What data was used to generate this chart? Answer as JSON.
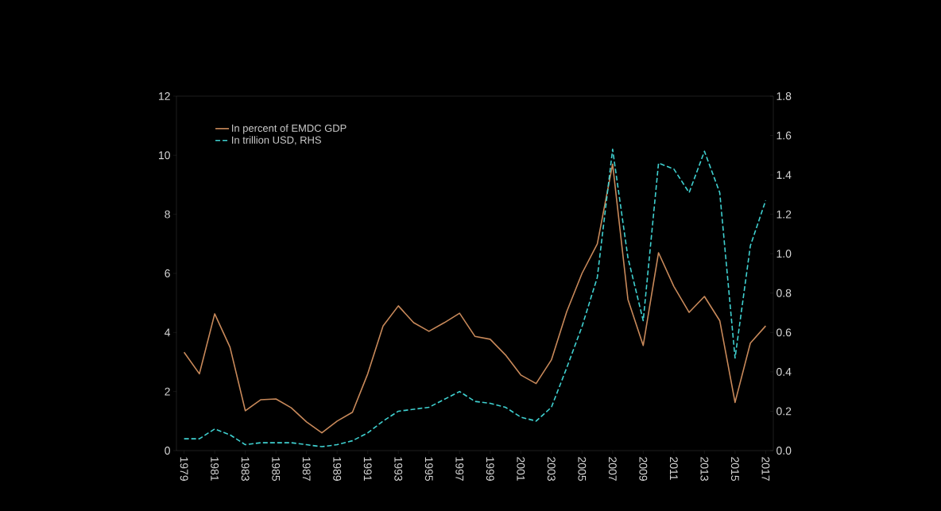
{
  "chart_data": {
    "type": "line",
    "x": [
      1979,
      1980,
      1981,
      1982,
      1983,
      1984,
      1985,
      1986,
      1987,
      1988,
      1989,
      1990,
      1991,
      1992,
      1993,
      1994,
      1995,
      1996,
      1997,
      1998,
      1999,
      2000,
      2001,
      2002,
      2003,
      2004,
      2005,
      2006,
      2007,
      2008,
      2009,
      2010,
      2011,
      2012,
      2013,
      2014,
      2015,
      2016,
      2017
    ],
    "series": [
      {
        "name": "In percent of EMDC GDP",
        "color": "#c8895a",
        "line_style": "solid",
        "axis": "y",
        "values": [
          3.33,
          2.6,
          4.63,
          3.5,
          1.35,
          1.72,
          1.75,
          1.45,
          0.97,
          0.6,
          1.0,
          1.3,
          2.6,
          4.22,
          4.9,
          4.33,
          4.04,
          4.33,
          4.65,
          3.87,
          3.77,
          3.24,
          2.56,
          2.27,
          3.07,
          4.7,
          6.0,
          7.0,
          9.7,
          5.12,
          3.56,
          6.7,
          5.56,
          4.68,
          5.22,
          4.4,
          1.63,
          3.64,
          4.22
        ]
      },
      {
        "name": "In trillion USD, RHS",
        "color": "#3fd0d0",
        "line_style": "dashed",
        "axis": "y2",
        "values": [
          0.06,
          0.06,
          0.11,
          0.08,
          0.03,
          0.04,
          0.04,
          0.04,
          0.03,
          0.02,
          0.03,
          0.05,
          0.09,
          0.15,
          0.2,
          0.21,
          0.22,
          0.26,
          0.3,
          0.25,
          0.24,
          0.22,
          0.17,
          0.15,
          0.22,
          0.42,
          0.63,
          0.88,
          1.53,
          0.98,
          0.66,
          1.46,
          1.43,
          1.31,
          1.52,
          1.31,
          0.47,
          1.04,
          1.27
        ]
      }
    ],
    "xlim": [
      1978.5,
      2017.5
    ],
    "xticks": [
      1979,
      1981,
      1983,
      1985,
      1987,
      1989,
      1991,
      1993,
      1995,
      1997,
      1999,
      2001,
      2003,
      2005,
      2007,
      2009,
      2011,
      2013,
      2015,
      2017
    ],
    "ylim": [
      0,
      12
    ],
    "yticks": [
      0,
      2,
      4,
      6,
      8,
      10,
      12
    ],
    "y2lim": [
      0,
      1.8
    ],
    "y2ticks": [
      {
        "value": 0,
        "label": "0.0"
      },
      0.2,
      0.4,
      0.6,
      0.8,
      {
        "value": 1,
        "label": "1.0"
      },
      1.2,
      1.4,
      1.6,
      1.8
    ],
    "legend": "top left"
  }
}
